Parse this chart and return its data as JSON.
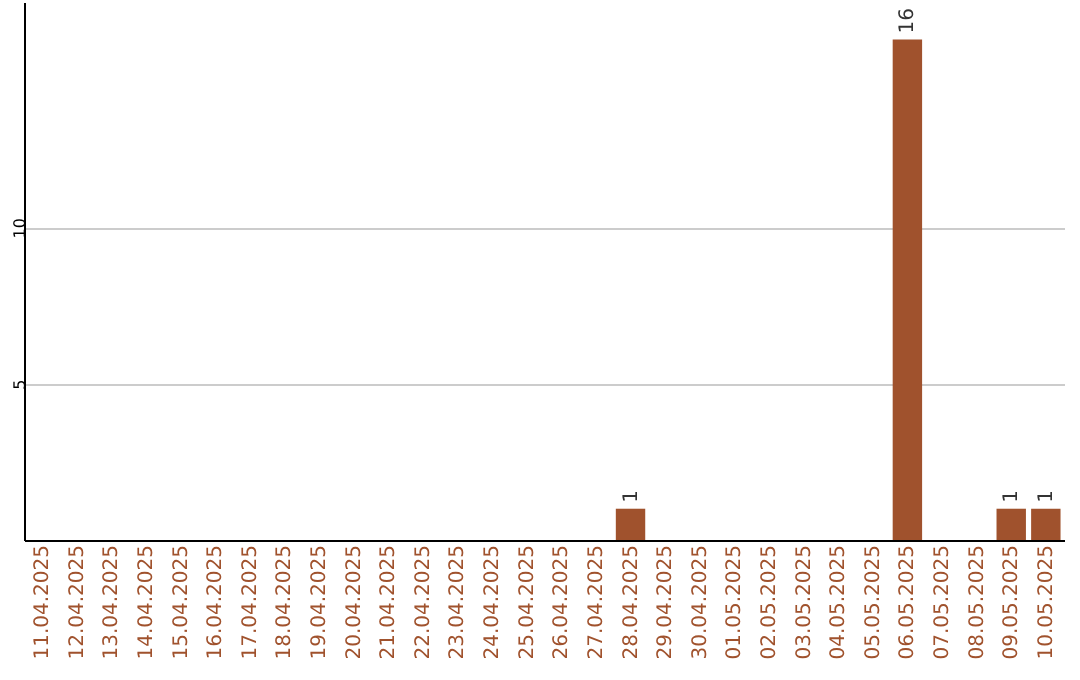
{
  "chart_data": {
    "type": "bar",
    "categories": [
      "11.04.2025",
      "12.04.2025",
      "13.04.2025",
      "14.04.2025",
      "15.04.2025",
      "16.04.2025",
      "17.04.2025",
      "18.04.2025",
      "19.04.2025",
      "20.04.2025",
      "21.04.2025",
      "22.04.2025",
      "23.04.2025",
      "24.04.2025",
      "25.04.2025",
      "26.04.2025",
      "27.04.2025",
      "28.04.2025",
      "29.04.2025",
      "30.04.2025",
      "01.05.2025",
      "02.05.2025",
      "03.05.2025",
      "04.05.2025",
      "05.05.2025",
      "06.05.2025",
      "07.05.2025",
      "08.05.2025",
      "09.05.2025",
      "10.05.2025"
    ],
    "values": [
      0,
      0,
      0,
      0,
      0,
      0,
      0,
      0,
      0,
      0,
      0,
      0,
      0,
      0,
      0,
      0,
      0,
      1,
      0,
      0,
      0,
      0,
      0,
      0,
      0,
      16,
      0,
      0,
      1,
      1
    ],
    "value_labels": [
      null,
      null,
      null,
      null,
      null,
      null,
      null,
      null,
      null,
      null,
      null,
      null,
      null,
      null,
      null,
      null,
      null,
      "1",
      null,
      null,
      null,
      null,
      null,
      null,
      null,
      "16",
      null,
      null,
      "1",
      "1"
    ],
    "color": "#a0522d",
    "ylim": [
      0,
      17.2
    ],
    "yticks": [
      5,
      10
    ],
    "grid": "y"
  }
}
